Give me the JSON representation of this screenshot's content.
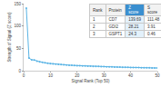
{
  "chart_data": {
    "type": "line",
    "x_label": "Signal Rank (Top 50)",
    "y_label": "Strength of Signal (Z score)",
    "x": [
      1,
      2,
      3,
      4,
      5,
      6,
      7,
      8,
      9,
      10,
      11,
      12,
      13,
      14,
      15,
      16,
      17,
      18,
      19,
      20,
      21,
      22,
      23,
      24,
      25,
      26,
      27,
      28,
      29,
      30,
      31,
      32,
      33,
      34,
      35,
      36,
      37,
      38,
      39,
      40,
      41,
      42,
      43,
      44,
      45,
      46,
      47,
      48,
      49,
      50
    ],
    "values": [
      139.69,
      28.21,
      24.3,
      23.84,
      21.5,
      19.8,
      18.6,
      17.5,
      16.6,
      15.9,
      15.2,
      14.6,
      14.1,
      13.6,
      13.2,
      12.8,
      12.4,
      12.0,
      11.7,
      11.4,
      11.1,
      10.8,
      10.5,
      10.3,
      10.0,
      9.8,
      9.6,
      9.4,
      9.2,
      9.0,
      8.8,
      8.6,
      8.4,
      8.3,
      8.1,
      7.9,
      7.8,
      7.6,
      7.5,
      7.3,
      7.2,
      7.0,
      6.9,
      6.8,
      6.6,
      6.5,
      6.4,
      6.3,
      6.1,
      6.0
    ],
    "color": "#5ab4e5",
    "xlim": [
      0,
      50
    ],
    "xticks": [
      0,
      10,
      20,
      30,
      40,
      50
    ],
    "ylim": [
      0,
      150
    ],
    "yticks": [
      0,
      50,
      100,
      150
    ],
    "grid": false
  },
  "table": {
    "header": [
      "Rank",
      "Protein",
      "Z score",
      "S score"
    ],
    "rows": [
      [
        "1",
        "CD7",
        "139.69",
        "111.48"
      ],
      [
        "2",
        "GDI2",
        "28.21",
        "3.91"
      ],
      [
        "3",
        "GSPT1",
        "24.3",
        "0.46"
      ]
    ]
  }
}
